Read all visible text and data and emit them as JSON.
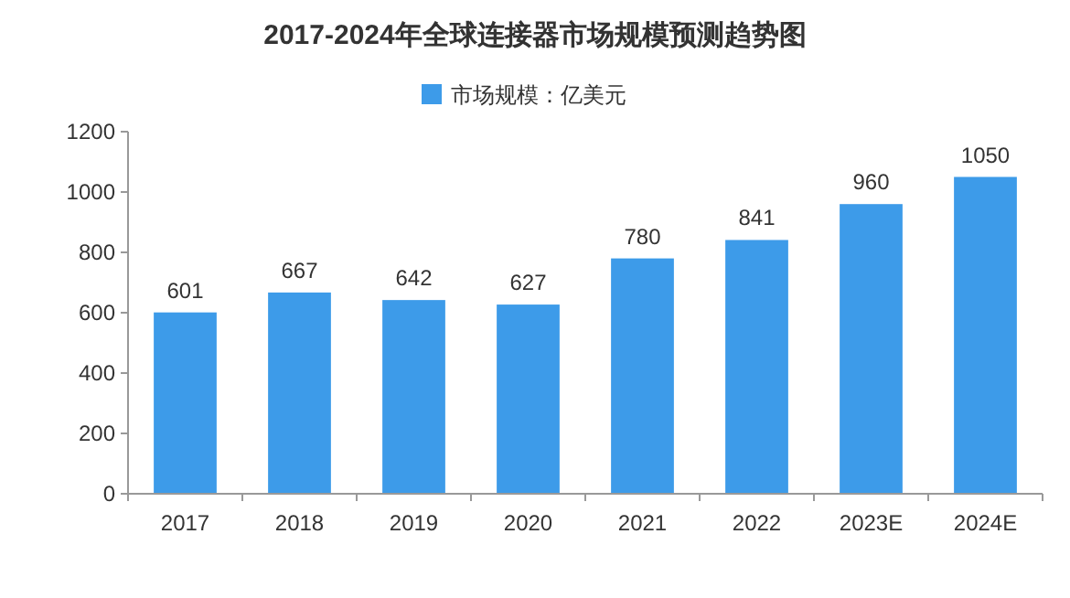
{
  "chart_data": {
    "type": "bar",
    "title": "2017-2024年全球连接器市场规模预测趋势图",
    "categories": [
      "2017",
      "2018",
      "2019",
      "2020",
      "2021",
      "2022",
      "2023E",
      "2024E"
    ],
    "series": [
      {
        "name": "市场规模：亿美元",
        "color": "#3d9be9",
        "values": [
          601,
          667,
          642,
          627,
          780,
          841,
          960,
          1050
        ]
      }
    ],
    "ylim": [
      0,
      1200
    ],
    "yticks": [
      0,
      200,
      400,
      600,
      800,
      1000,
      1200
    ],
    "data_labels": true,
    "legend": "top",
    "grid": false
  }
}
